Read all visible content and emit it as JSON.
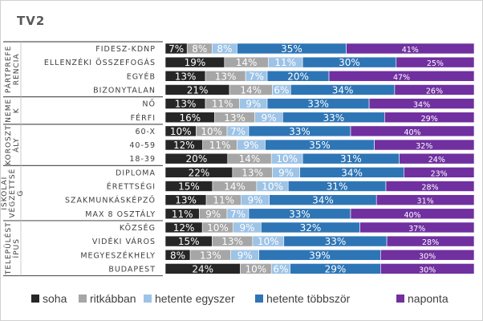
{
  "chart_data": {
    "type": "bar",
    "stacked": "percent",
    "orientation": "horizontal",
    "title": "TV2",
    "legend_position": "bottom",
    "series": [
      {
        "name": "soha",
        "color": "#262626"
      },
      {
        "name": "ritkábban",
        "color": "#a6a6a6"
      },
      {
        "name": "hetente egyszer",
        "color": "#9dc3e6"
      },
      {
        "name": "hetente többször",
        "color": "#2e75b6"
      },
      {
        "name": "naponta",
        "color": "#7030a0"
      }
    ],
    "groups": [
      {
        "label": "PÁRTPREFERENCIA",
        "label_lines": [
          "PÁRTPREFE",
          "RENCIA"
        ],
        "categories": [
          {
            "label": "FIDESZ-KDNP",
            "values": [
              7,
              8,
              8,
              35,
              41
            ]
          },
          {
            "label": "ELLENZÉKI ÖSSZEFOGÁS",
            "values": [
              19,
              14,
              11,
              30,
              25
            ]
          },
          {
            "label": "EGYÉB",
            "values": [
              13,
              13,
              7,
              20,
              47
            ]
          },
          {
            "label": "BIZONYTALAN",
            "values": [
              21,
              14,
              6,
              34,
              26
            ]
          }
        ]
      },
      {
        "label": "NEME",
        "label_lines": [
          "NEME",
          "K"
        ],
        "categories": [
          {
            "label": "NŐ",
            "values": [
              13,
              11,
              9,
              33,
              34
            ]
          },
          {
            "label": "FÉRFI",
            "values": [
              16,
              13,
              9,
              33,
              29
            ]
          }
        ]
      },
      {
        "label": "KOROSZTÁLY",
        "label_lines": [
          "KOROSZT",
          "ÁLY"
        ],
        "categories": [
          {
            "label": "60-X",
            "values": [
              10,
              10,
              7,
              33,
              40
            ]
          },
          {
            "label": "40-59",
            "values": [
              12,
              11,
              9,
              35,
              32
            ]
          },
          {
            "label": "18-39",
            "values": [
              20,
              14,
              10,
              31,
              24
            ]
          }
        ]
      },
      {
        "label": "ISKOLAI VÉGZETTSÉG",
        "label_lines": [
          "ISKOLAI",
          "VÉGZETTSÉ",
          "G"
        ],
        "categories": [
          {
            "label": "DIPLOMA",
            "values": [
              22,
              13,
              9,
              34,
              23
            ]
          },
          {
            "label": "ÉRETTSÉGI",
            "values": [
              15,
              14,
              10,
              31,
              28
            ]
          },
          {
            "label": "SZAKMUNKÁSKÉPZŐ",
            "values": [
              13,
              11,
              9,
              34,
              31
            ]
          },
          {
            "label": "MAX 8 OSZTÁLY",
            "values": [
              11,
              9,
              7,
              33,
              40
            ]
          }
        ]
      },
      {
        "label": "TELEPÜLÉSTÍPUS",
        "label_lines": [
          "TELEPÜLÉST",
          "ÍPUS"
        ],
        "categories": [
          {
            "label": "KÖZSÉG",
            "values": [
              12,
              10,
              9,
              32,
              37
            ]
          },
          {
            "label": "VIDÉKI VÁROS",
            "values": [
              15,
              13,
              10,
              33,
              28
            ]
          },
          {
            "label": "MEGYESZÉKHELY",
            "values": [
              8,
              13,
              9,
              39,
              30
            ]
          },
          {
            "label": "BUDAPEST",
            "values": [
              24,
              10,
              6,
              29,
              30
            ]
          }
        ]
      }
    ]
  }
}
